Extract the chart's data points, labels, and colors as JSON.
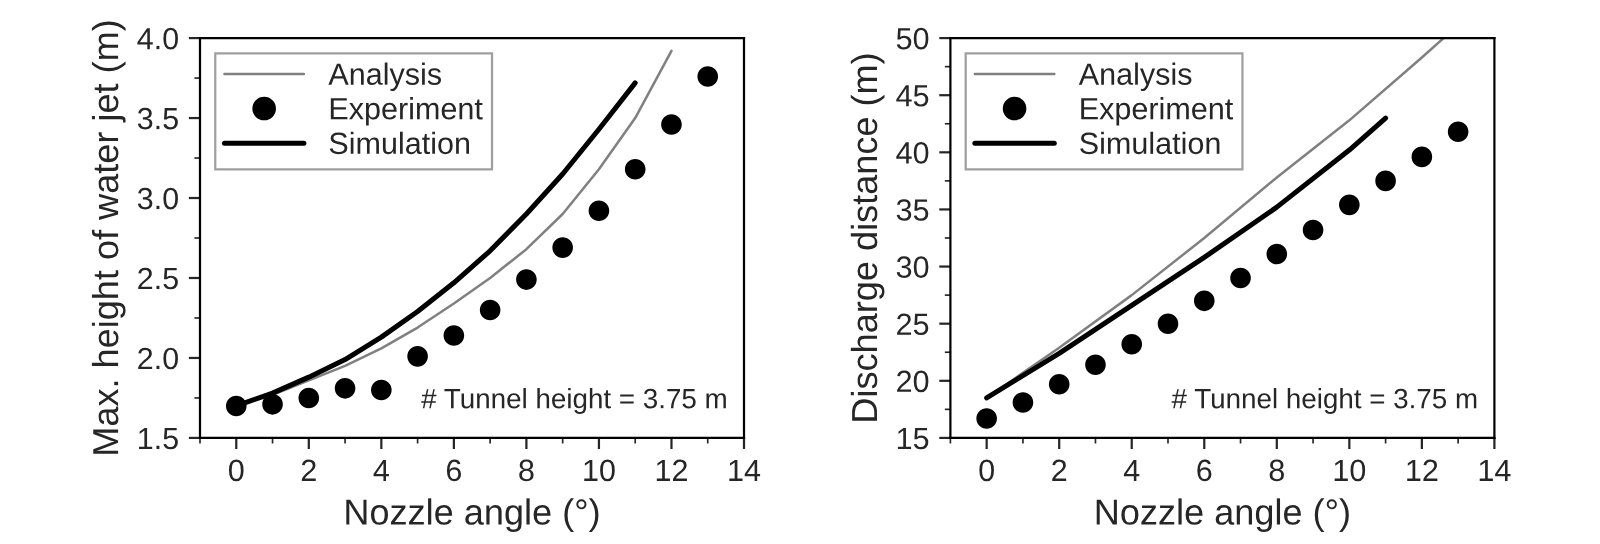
{
  "chart_data": [
    {
      "type": "line",
      "xlabel": "Nozzle angle (°)",
      "ylabel": "Max. height of water jet (m)",
      "xlim": [
        -1,
        14
      ],
      "ylim": [
        1.5,
        4.0
      ],
      "xticks": [
        0,
        2,
        4,
        6,
        8,
        10,
        12,
        14
      ],
      "yticks": [
        {
          "value": 1.5,
          "label": "1.5"
        },
        {
          "value": 2.0,
          "label": "2.0"
        },
        {
          "value": 2.5,
          "label": "2.5"
        },
        {
          "value": 3.0,
          "label": "3.0"
        },
        {
          "value": 3.5,
          "label": "3.5"
        },
        {
          "value": 4.0,
          "label": "4.0"
        }
      ],
      "grid": false,
      "legend": "top left",
      "annotations": [
        "# Tunnel height = 3.75 m"
      ],
      "series": [
        {
          "name": "Analysis",
          "type": "line",
          "color": "#808080",
          "x": [
            0,
            1,
            2,
            3,
            4,
            5,
            6,
            7,
            8,
            9,
            10,
            11,
            12
          ],
          "values": [
            1.7,
            1.77,
            1.86,
            1.95,
            2.06,
            2.19,
            2.34,
            2.5,
            2.68,
            2.9,
            3.18,
            3.5,
            3.92
          ]
        },
        {
          "name": "Experiment",
          "type": "scatter",
          "marker": "circle",
          "color": "#000000",
          "x": [
            0,
            1,
            2,
            3,
            4,
            5,
            6,
            7,
            8,
            9,
            10,
            11,
            12,
            13
          ],
          "values": [
            1.7,
            1.71,
            1.75,
            1.81,
            1.8,
            2.01,
            2.14,
            2.3,
            2.49,
            2.69,
            2.92,
            3.18,
            3.46,
            3.76
          ]
        },
        {
          "name": "Simulation",
          "type": "line",
          "color": "#000000",
          "x": [
            0,
            1,
            2,
            3,
            4,
            5,
            6,
            7,
            8,
            9,
            10,
            11
          ],
          "values": [
            1.7,
            1.78,
            1.88,
            1.99,
            2.13,
            2.29,
            2.47,
            2.67,
            2.9,
            3.15,
            3.43,
            3.72
          ]
        }
      ]
    },
    {
      "type": "line",
      "xlabel": "Nozzle angle (°)",
      "ylabel": "Discharge distance (m)",
      "xlim": [
        -1,
        14
      ],
      "ylim": [
        15,
        50
      ],
      "xticks": [
        0,
        2,
        4,
        6,
        8,
        10,
        12,
        14
      ],
      "yticks": [
        15,
        20,
        25,
        30,
        35,
        40,
        45,
        50
      ],
      "grid": false,
      "legend": "top left",
      "annotations": [
        "# Tunnel height = 3.75 m"
      ],
      "series": [
        {
          "name": "Analysis",
          "type": "line",
          "color": "#808080",
          "x": [
            0,
            2,
            4,
            6,
            8,
            10,
            12,
            12.6
          ],
          "values": [
            18.5,
            22.9,
            27.5,
            32.5,
            37.8,
            42.8,
            48.3,
            50.0
          ]
        },
        {
          "name": "Experiment",
          "type": "scatter",
          "marker": "circle",
          "color": "#000000",
          "x": [
            0,
            1,
            2,
            3,
            4,
            5,
            6,
            7,
            8,
            9,
            10,
            11,
            12,
            13
          ],
          "values": [
            16.7,
            18.1,
            19.7,
            21.4,
            23.2,
            25.0,
            27.0,
            29.0,
            31.1,
            33.2,
            35.4,
            37.5,
            39.6,
            41.8
          ]
        },
        {
          "name": "Simulation",
          "type": "line",
          "color": "#000000",
          "x": [
            0,
            2,
            4,
            6,
            8,
            10,
            11
          ],
          "values": [
            18.5,
            22.4,
            26.6,
            30.8,
            35.2,
            40.2,
            43.0
          ]
        }
      ]
    }
  ]
}
